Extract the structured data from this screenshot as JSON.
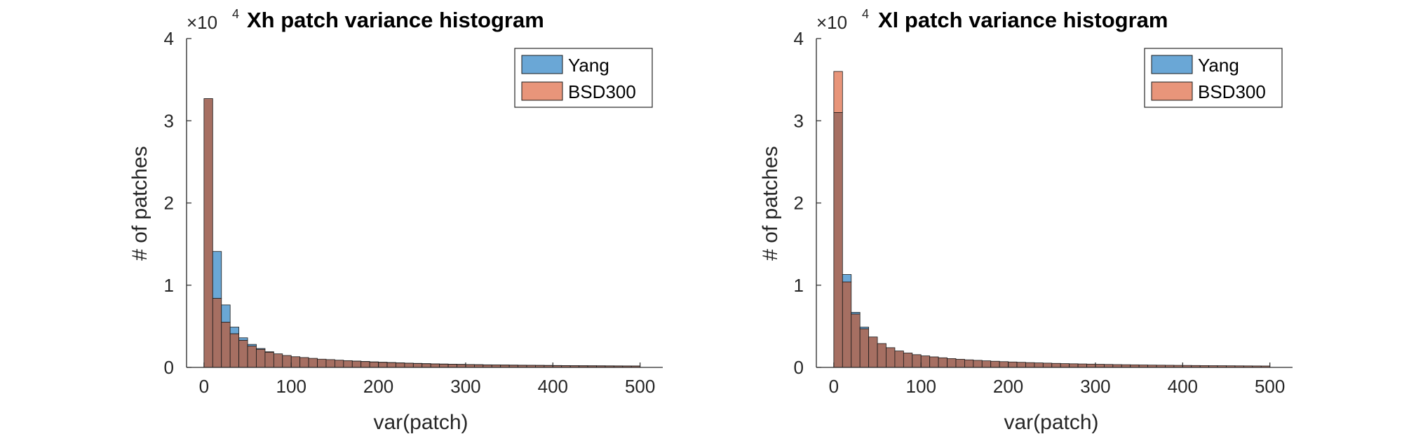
{
  "colors": {
    "yang": "#6aa7d6",
    "bsd300": "#e8957a",
    "overlap": "#a66f62",
    "edge": "#1a1a1a",
    "axis": "#262626"
  },
  "chart_data": [
    {
      "type": "bar",
      "title": "Xh patch variance histogram",
      "xlabel": "var(patch)",
      "ylabel": "# of patches",
      "exponent_base": "×10",
      "exponent_power": "4",
      "xlim": [
        -20,
        526
      ],
      "ylim": [
        0,
        40000
      ],
      "xticks": [
        0,
        100,
        200,
        300,
        400,
        500
      ],
      "yticks": [
        0,
        1,
        2,
        3,
        4
      ],
      "bin_width": 10,
      "bin_start": 0,
      "legend_position": "top-right",
      "series": [
        {
          "name": "Yang",
          "color": "yang",
          "values": [
            32700,
            14100,
            7600,
            4900,
            3600,
            2800,
            2300,
            1900,
            1650,
            1450,
            1300,
            1200,
            1100,
            1000,
            950,
            880,
            820,
            760,
            710,
            660,
            620,
            580,
            540,
            510,
            480,
            450,
            420,
            400,
            380,
            360,
            340,
            320,
            300,
            290,
            280,
            270,
            260,
            250,
            240,
            230,
            220,
            210,
            200,
            195,
            190,
            185,
            180,
            175,
            170,
            165
          ]
        },
        {
          "name": "BSD300",
          "color": "bsd300",
          "values": [
            32700,
            8400,
            5500,
            4100,
            3300,
            2600,
            2200,
            1850,
            1650,
            1450,
            1300,
            1200,
            1100,
            1000,
            950,
            880,
            820,
            770,
            720,
            670,
            630,
            590,
            550,
            520,
            490,
            460,
            430,
            410,
            390,
            370,
            350,
            330,
            310,
            300,
            290,
            280,
            270,
            260,
            250,
            240,
            230,
            220,
            210,
            205,
            200,
            195,
            190,
            185,
            180,
            175
          ]
        }
      ]
    },
    {
      "type": "bar",
      "title": "Xl patch variance histogram",
      "xlabel": "var(patch)",
      "ylabel": "# of patches",
      "exponent_base": "×10",
      "exponent_power": "4",
      "xlim": [
        -20,
        526
      ],
      "ylim": [
        0,
        40000
      ],
      "xticks": [
        0,
        100,
        200,
        300,
        400,
        500
      ],
      "yticks": [
        0,
        1,
        2,
        3,
        4
      ],
      "bin_width": 10,
      "bin_start": 0,
      "legend_position": "top-right",
      "series": [
        {
          "name": "Yang",
          "color": "yang",
          "values": [
            31000,
            11300,
            6700,
            4900,
            3700,
            2900,
            2400,
            2000,
            1750,
            1550,
            1400,
            1280,
            1170,
            1070,
            990,
            920,
            860,
            800,
            750,
            700,
            660,
            620,
            580,
            550,
            520,
            490,
            460,
            440,
            420,
            400,
            380,
            360,
            340,
            325,
            310,
            295,
            280,
            270,
            260,
            250,
            240,
            230,
            220,
            212,
            205,
            198,
            190,
            184,
            178,
            172
          ]
        },
        {
          "name": "BSD300",
          "color": "bsd300",
          "values": [
            36000,
            10400,
            6500,
            4700,
            3700,
            2900,
            2400,
            2000,
            1750,
            1550,
            1400,
            1280,
            1170,
            1070,
            990,
            920,
            860,
            800,
            750,
            700,
            660,
            620,
            580,
            550,
            520,
            490,
            460,
            440,
            420,
            400,
            380,
            360,
            340,
            325,
            310,
            295,
            280,
            270,
            260,
            250,
            240,
            230,
            220,
            212,
            205,
            198,
            190,
            184,
            178,
            172
          ]
        }
      ]
    }
  ]
}
